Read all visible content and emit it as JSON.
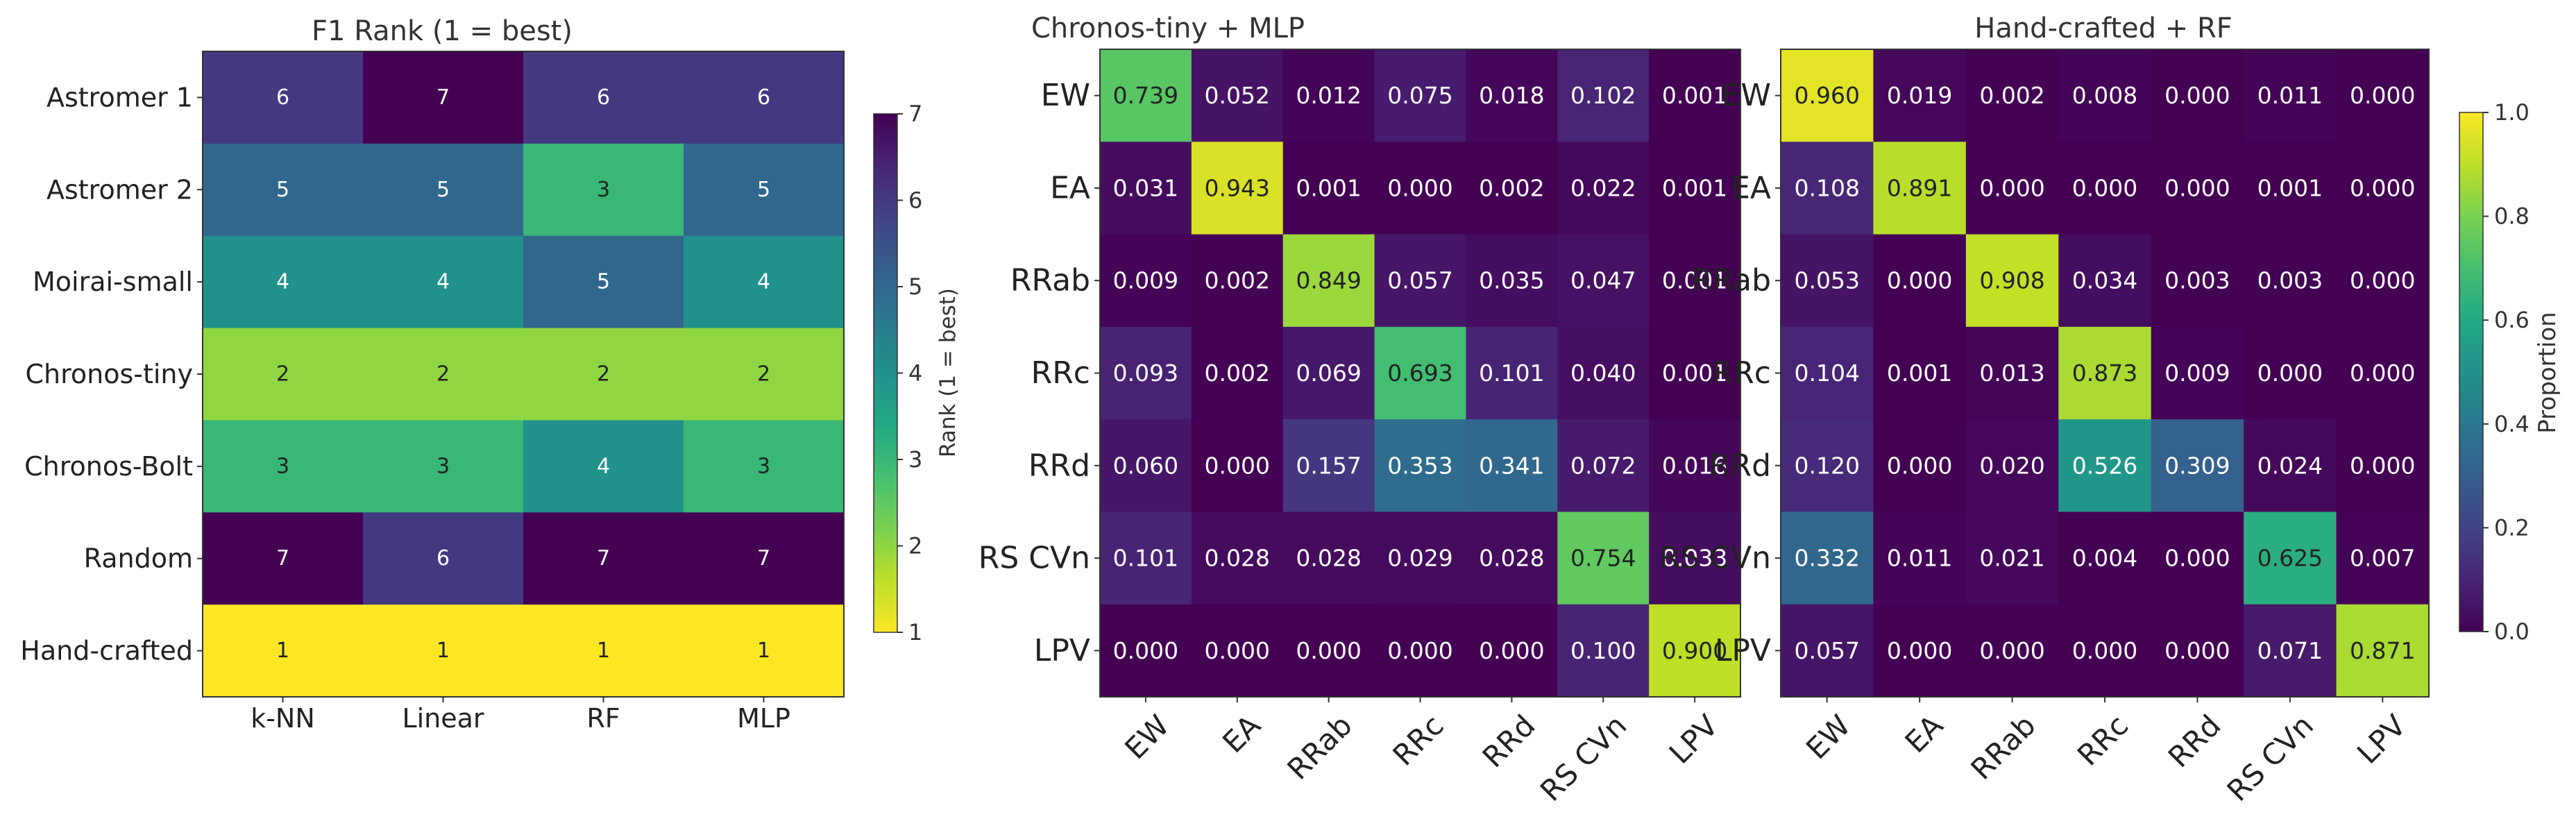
{
  "chart_data": [
    {
      "type": "heatmap",
      "title": "F1 Rank (1 = best)",
      "rows": [
        "Astromer 1",
        "Astromer 2",
        "Moirai-small",
        "Chronos-tiny",
        "Chronos-Bolt",
        "Random",
        "Hand-crafted"
      ],
      "columns": [
        "k-NN",
        "Linear",
        "RF",
        "MLP"
      ],
      "values": [
        [
          6,
          7,
          6,
          6
        ],
        [
          5,
          5,
          3,
          5
        ],
        [
          4,
          4,
          5,
          4
        ],
        [
          2,
          2,
          2,
          2
        ],
        [
          3,
          3,
          4,
          3
        ],
        [
          7,
          6,
          7,
          7
        ],
        [
          1,
          1,
          1,
          1
        ]
      ],
      "colormap": "viridis_r",
      "vmin": 1,
      "vmax": 7,
      "colorbar_label": "Rank (1 = best)",
      "colorbar_ticks": [
        "1",
        "2",
        "3",
        "4",
        "5",
        "6",
        "7"
      ]
    },
    {
      "type": "heatmap",
      "title": "Chronos-tiny + MLP",
      "rows": [
        "EW",
        "EA",
        "RRab",
        "RRc",
        "RRd",
        "RS CVn",
        "LPV"
      ],
      "columns": [
        "EW",
        "EA",
        "RRab",
        "RRc",
        "RRd",
        "RS CVn",
        "LPV"
      ],
      "values": [
        [
          "0.739",
          "0.052",
          "0.012",
          "0.075",
          "0.018",
          "0.102",
          "0.001"
        ],
        [
          "0.031",
          "0.943",
          "0.001",
          "0.000",
          "0.002",
          "0.022",
          "0.001"
        ],
        [
          "0.009",
          "0.002",
          "0.849",
          "0.057",
          "0.035",
          "0.047",
          "0.001"
        ],
        [
          "0.093",
          "0.002",
          "0.069",
          "0.693",
          "0.101",
          "0.040",
          "0.001"
        ],
        [
          "0.060",
          "0.000",
          "0.157",
          "0.353",
          "0.341",
          "0.072",
          "0.016"
        ],
        [
          "0.101",
          "0.028",
          "0.028",
          "0.029",
          "0.028",
          "0.754",
          "0.033"
        ],
        [
          "0.000",
          "0.000",
          "0.000",
          "0.000",
          "0.000",
          "0.100",
          "0.900"
        ]
      ],
      "colormap": "viridis",
      "vmin": 0,
      "vmax": 1
    },
    {
      "type": "heatmap",
      "title": "Hand-crafted + RF",
      "rows": [
        "EW",
        "EA",
        "RRab",
        "RRc",
        "RRd",
        "RS CVn",
        "LPV"
      ],
      "columns": [
        "EW",
        "EA",
        "RRab",
        "RRc",
        "RRd",
        "RS CVn",
        "LPV"
      ],
      "values": [
        [
          "0.960",
          "0.019",
          "0.002",
          "0.008",
          "0.000",
          "0.011",
          "0.000"
        ],
        [
          "0.108",
          "0.891",
          "0.000",
          "0.000",
          "0.000",
          "0.001",
          "0.000"
        ],
        [
          "0.053",
          "0.000",
          "0.908",
          "0.034",
          "0.003",
          "0.003",
          "0.000"
        ],
        [
          "0.104",
          "0.001",
          "0.013",
          "0.873",
          "0.009",
          "0.000",
          "0.000"
        ],
        [
          "0.120",
          "0.000",
          "0.020",
          "0.526",
          "0.309",
          "0.024",
          "0.000"
        ],
        [
          "0.332",
          "0.011",
          "0.021",
          "0.004",
          "0.000",
          "0.625",
          "0.007"
        ],
        [
          "0.057",
          "0.000",
          "0.000",
          "0.000",
          "0.000",
          "0.071",
          "0.871"
        ]
      ],
      "colormap": "viridis",
      "vmin": 0,
      "vmax": 1,
      "colorbar_label": "Proportion",
      "colorbar_ticks": [
        "0.0",
        "0.2",
        "0.4",
        "0.6",
        "0.8",
        "1.0"
      ]
    }
  ]
}
